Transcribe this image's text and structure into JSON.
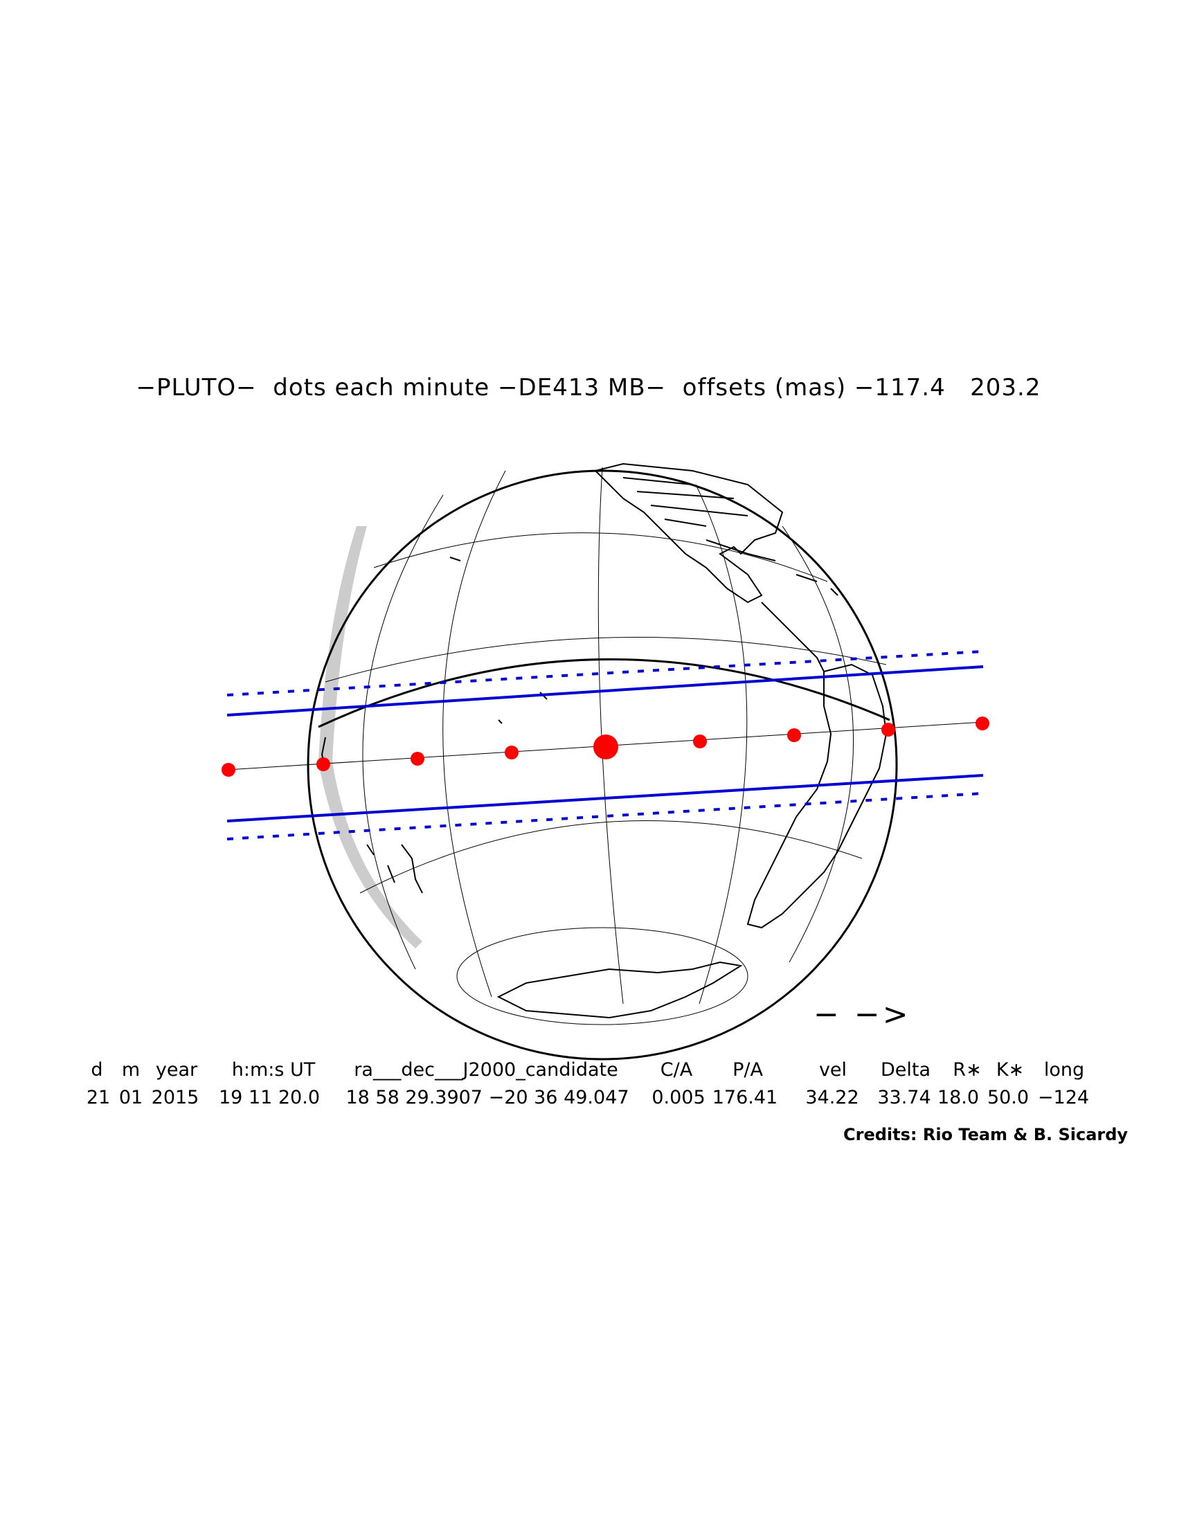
{
  "title": "−PLUTO−  dots each minute −DE413 MB−  offsets (mas) −117.4   203.2",
  "direction_arrow": "− −>",
  "header_labels": [
    "d",
    "m",
    "year",
    "h:m:s UT",
    "ra___dec___J2000_candidate",
    "C/A",
    "P/A",
    "vel",
    "Delta",
    "R∗",
    "K∗",
    "long"
  ],
  "values": {
    "d": "21",
    "m": "01",
    "year": "2015",
    "hms": "19 11 20.0",
    "radec": "18 58 29.3907 −20 36 49.047",
    "ca": "0.005",
    "pa": "176.41",
    "vel": "34.22",
    "delta": "33.74",
    "rstar": "18.0",
    "kstar": "50.0",
    "long": "−124"
  },
  "credits": "Credits: Rio Team & B. Sicardy",
  "colors": {
    "shadow_path": "#0000d0",
    "centerline_dots": "#ff0000",
    "globe_outline": "#000000",
    "night_shade": "#cccccc"
  },
  "icons": {
    "dots": "centerline-dot-markers",
    "arrow": "motion-direction-arrow"
  }
}
